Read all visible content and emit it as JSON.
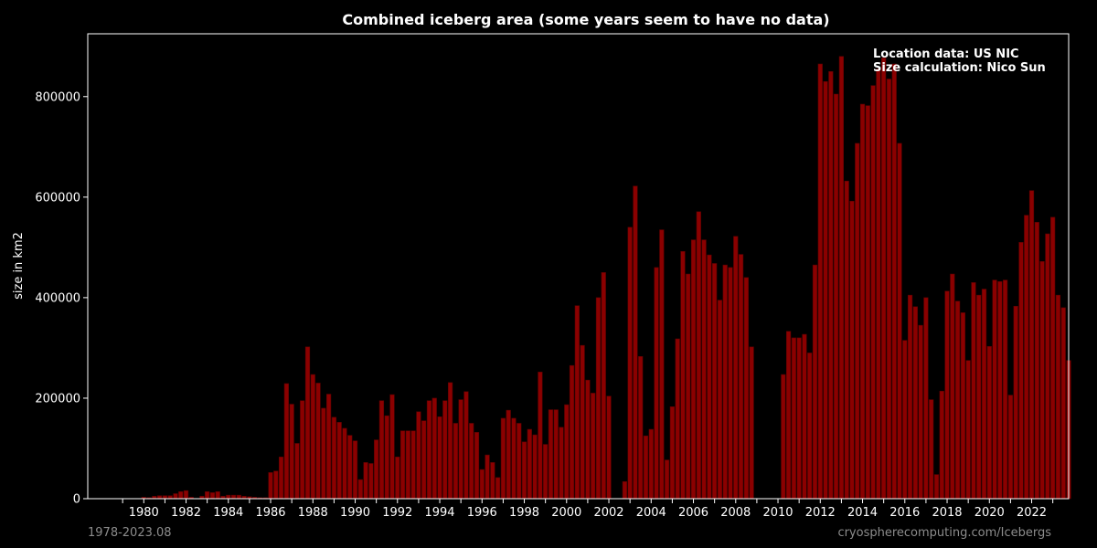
{
  "chart_data": {
    "type": "bar",
    "title": "Combined iceberg area (some years seem to have no data)",
    "ylabel": "size in km2",
    "xlabel": "",
    "ylim": [
      0,
      925000
    ],
    "yticks": [
      0,
      200000,
      400000,
      600000,
      800000
    ],
    "xticks": [
      1980,
      1982,
      1984,
      1986,
      1988,
      1990,
      1992,
      1994,
      1996,
      1998,
      2000,
      2002,
      2004,
      2006,
      2008,
      2010,
      2012,
      2014,
      2016,
      2018,
      2020,
      2022
    ],
    "x_start": 1978.0,
    "x_step": 0.25,
    "bar_color": "#8b0000",
    "bar_edge_color": "#5a0000",
    "grid": false,
    "series": [
      {
        "values": [
          0,
          0,
          0,
          0,
          0,
          0,
          0,
          0,
          3000,
          2000,
          5000,
          6000,
          6000,
          6000,
          10000,
          14000,
          16000,
          3000,
          0,
          5000,
          14000,
          12000,
          14000,
          5000,
          7000,
          7000,
          7000,
          5000,
          4000,
          3000,
          2000,
          2000,
          52000,
          55000,
          83000,
          229000,
          188000,
          110000,
          195000,
          302000,
          247000,
          230000,
          180000,
          208000,
          162000,
          152000,
          140000,
          126000,
          115000,
          38000,
          72000,
          70000,
          117000,
          195000,
          165000,
          207000,
          83000,
          135000,
          135000,
          135000,
          173000,
          155000,
          195000,
          200000,
          163000,
          195000,
          231000,
          150000,
          197000,
          213000,
          150000,
          132000,
          58000,
          87000,
          72000,
          42000,
          160000,
          176000,
          160000,
          150000,
          113000,
          138000,
          127000,
          252000,
          108000,
          177000,
          177000,
          142000,
          187000,
          265000,
          384000,
          305000,
          236000,
          210000,
          400000,
          450000,
          204000,
          0,
          0,
          34000,
          540000,
          622000,
          283000,
          125000,
          138000,
          460000,
          535000,
          77000,
          183000,
          318000,
          492000,
          447000,
          515000,
          571000,
          515000,
          485000,
          468000,
          395000,
          465000,
          460000,
          522000,
          486000,
          440000,
          302000,
          0,
          0,
          0,
          0,
          0,
          247000,
          333000,
          320000,
          320000,
          327000,
          290000,
          465000,
          865000,
          830000,
          850000,
          805000,
          880000,
          632000,
          592000,
          707000,
          785000,
          782000,
          822000,
          855000,
          877000,
          835000,
          865000,
          707000,
          315000,
          405000,
          382000,
          345000,
          400000,
          197000,
          48000,
          214000,
          413000,
          447000,
          393000,
          370000,
          275000,
          430000,
          405000,
          417000,
          303000,
          435000,
          432000,
          435000,
          206000,
          383000,
          510000,
          564000,
          613000,
          550000,
          472000,
          527000,
          560000,
          405000,
          380000,
          275000
        ]
      }
    ],
    "annotation_lines": [
      "Location data: US NIC",
      "Size calculation: Nico Sun"
    ],
    "footer_left": "1978-2023.08",
    "footer_right": "cryospherecomputing.com/Icebergs"
  }
}
